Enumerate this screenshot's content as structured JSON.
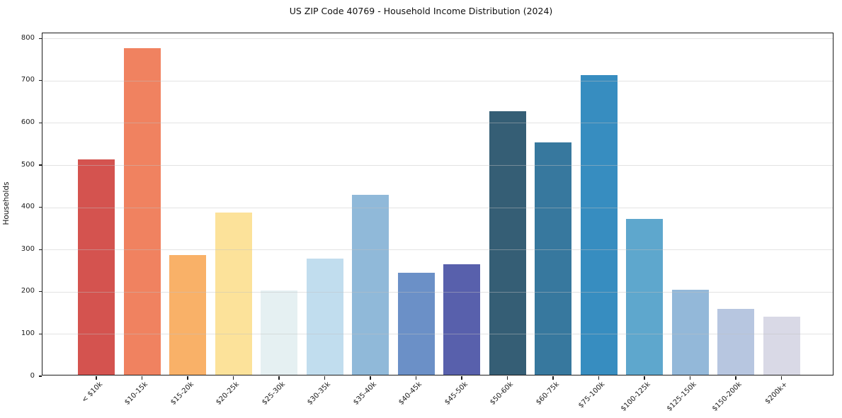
{
  "chart_data": {
    "type": "bar",
    "title": "US ZIP Code 40769 - Household Income Distribution (2024)",
    "xlabel": "",
    "ylabel": "Households",
    "ylim": [
      0,
      800
    ],
    "yticks": [
      0,
      100,
      200,
      300,
      400,
      500,
      600,
      700,
      800
    ],
    "grid": "horizontal",
    "legend": "none",
    "categories": [
      "< $10k",
      "$10-15k",
      "$15-20k",
      "$20-25k",
      "$25-30k",
      "$30-35k",
      "$35-40k",
      "$40-45k",
      "$45-50k",
      "$50-60k",
      "$60-75k",
      "$75-100k",
      "$100-125k",
      "$125-150k",
      "$150-200k",
      "$200k+"
    ],
    "values": [
      510,
      773,
      284,
      385,
      200,
      276,
      427,
      242,
      262,
      625,
      551,
      709,
      370,
      202,
      156,
      137
    ],
    "bar_colors": [
      "#d4534f",
      "#f08260",
      "#f9b168",
      "#fce29a",
      "#e5f0f2",
      "#c1ddee",
      "#90b9d9",
      "#6b90c7",
      "#5860ac",
      "#355e75",
      "#37789e",
      "#378dc0",
      "#5ea7cd",
      "#93b8d9",
      "#b7c6e0",
      "#d9d9e6"
    ]
  }
}
